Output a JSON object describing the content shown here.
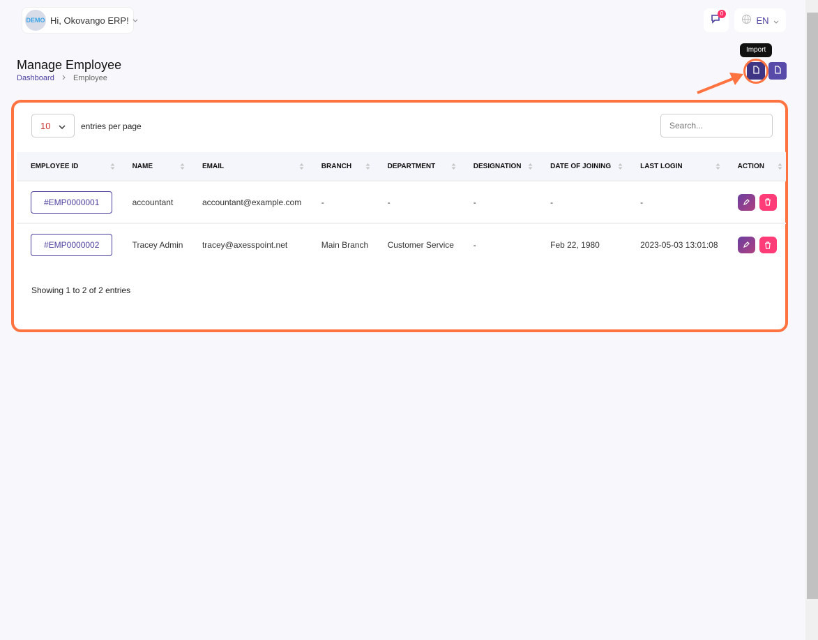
{
  "header": {
    "logo_text": "DEMO",
    "greeting": "Hi, Okovango ERP!",
    "notification_count": "0",
    "language": "EN"
  },
  "page": {
    "title": "Manage Employee",
    "breadcrumb": [
      "Dashboard",
      "Employee"
    ],
    "tooltip": "Import"
  },
  "table_controls": {
    "entries": "10",
    "entries_label": "entries per page",
    "search_placeholder": "Search..."
  },
  "columns": [
    "EMPLOYEE ID",
    "NAME",
    "EMAIL",
    "BRANCH",
    "DEPARTMENT",
    "DESIGNATION",
    "DATE OF JOINING",
    "LAST LOGIN",
    "ACTION"
  ],
  "rows": [
    {
      "id": "#EMP0000001",
      "name": "accountant",
      "email": "accountant@example.com",
      "branch": "-",
      "department": "-",
      "designation": "-",
      "doj": "-",
      "last_login": "-"
    },
    {
      "id": "#EMP0000002",
      "name": "Tracey Admin",
      "email": "tracey@axesspoint.net",
      "branch": "Main Branch",
      "department": "Customer Service",
      "designation": "-",
      "doj": "Feb 22, 1980",
      "last_login": "2023-05-03 13:01:08"
    }
  ],
  "footer": "Showing 1 to 2 of 2 entries",
  "colors": {
    "accent": "#574aa8",
    "highlight": "#ff7340",
    "delete": "#ff3b78"
  }
}
